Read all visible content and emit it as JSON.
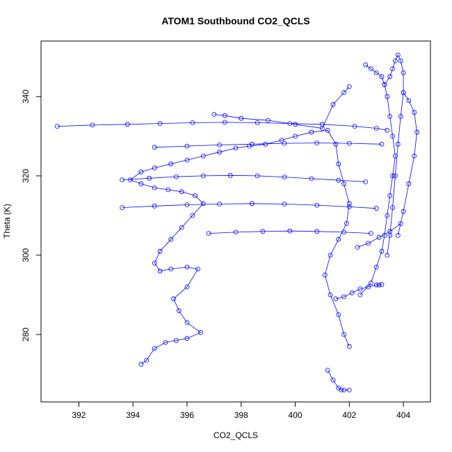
{
  "chart_data": {
    "type": "line",
    "title": "ATOM1 Southbound CO2_QCLS",
    "xlabel": "CO2_QCLS",
    "ylabel": "Theta (K)",
    "xlim": [
      390.6,
      405.0
    ],
    "ylim": [
      263.0,
      354.0
    ],
    "x_ticks": [
      392,
      394,
      396,
      398,
      400,
      402,
      404
    ],
    "y_ticks": [
      280,
      300,
      320,
      340
    ],
    "grid": false,
    "markers": "open-circle",
    "color": "#0000ff",
    "series": [
      {
        "x": [
          394.3,
          394.5,
          394.8,
          395.2,
          395.6,
          396.0,
          396.5,
          396.0,
          395.7,
          395.5,
          396.0,
          396.4,
          396.0,
          395.4,
          395.0,
          394.8,
          395.0,
          395.4,
          395.8,
          396.2,
          396.6,
          396.3,
          395.8,
          395.3,
          394.8,
          394.3,
          393.9,
          394.3,
          394.8,
          395.4,
          396.0,
          396.6,
          397.2,
          397.8,
          398.3,
          398.9,
          399.5,
          400.0,
          400.6,
          401.2,
          401.5,
          401.6,
          401.8,
          402.0,
          401.9,
          401.6,
          401.3,
          401.1,
          401.3,
          401.6,
          401.8,
          402.0
        ],
        "y": [
          272.5,
          273.5,
          276.5,
          278.0,
          278.5,
          279.0,
          280.5,
          283.0,
          286.0,
          289.0,
          292.0,
          296.5,
          297.0,
          296.5,
          296.0,
          298.0,
          301.0,
          304.0,
          307.0,
          310.0,
          313.0,
          315.0,
          316.0,
          316.5,
          317.0,
          318.0,
          319.0,
          321.0,
          322.0,
          323.0,
          324.0,
          325.0,
          326.0,
          327.0,
          327.5,
          328.0,
          329.0,
          330.0,
          331.0,
          331.5,
          328.0,
          323.0,
          318.0,
          313.0,
          308.0,
          304.0,
          300.0,
          295.0,
          290.0,
          285.0,
          280.0,
          277.0
        ]
      },
      {
        "x": [
          391.2,
          392.5,
          393.8,
          395.0,
          396.2,
          397.4,
          398.6,
          399.8,
          401.0,
          402.2,
          403.0,
          403.4
        ],
        "y": [
          332.5,
          332.8,
          333.0,
          333.2,
          333.4,
          333.5,
          333.4,
          333.2,
          333.0,
          332.5,
          332.0,
          331.5
        ]
      },
      {
        "x": [
          393.6,
          394.8,
          396.0,
          397.2,
          398.4,
          399.6,
          400.8,
          402.0,
          403.0
        ],
        "y": [
          312.0,
          312.4,
          312.7,
          312.9,
          313.0,
          312.9,
          312.6,
          312.2,
          311.8
        ]
      },
      {
        "x": [
          393.6,
          394.6,
          395.6,
          396.6,
          397.6,
          398.6,
          399.6,
          400.6,
          401.6,
          402.6
        ],
        "y": [
          319.0,
          319.4,
          319.8,
          320.0,
          320.1,
          320.0,
          319.7,
          319.3,
          318.9,
          318.5
        ]
      },
      {
        "x": [
          394.8,
          396.0,
          397.2,
          398.4,
          399.6,
          400.8,
          402.0,
          403.2
        ],
        "y": [
          327.2,
          327.5,
          327.8,
          328.0,
          328.2,
          328.3,
          328.2,
          328.0
        ]
      },
      {
        "x": [
          396.8,
          397.8,
          398.8,
          399.8,
          400.8,
          401.8,
          402.8
        ],
        "y": [
          305.5,
          305.8,
          306.0,
          306.1,
          306.0,
          305.8,
          305.5
        ]
      },
      {
        "x": [
          397.0,
          397.4,
          398.0,
          399.0,
          400.0,
          401.0,
          401.4,
          401.8,
          402.0
        ],
        "y": [
          335.5,
          335.2,
          334.5,
          334.0,
          333.0,
          332.0,
          338.0,
          341.0,
          342.5
        ]
      },
      {
        "x": [
          401.2,
          401.4,
          401.6,
          401.7,
          401.8,
          402.0
        ],
        "y": [
          271.0,
          268.5,
          266.5,
          266.0,
          266.0,
          266.0
        ]
      },
      {
        "x": [
          402.4,
          402.8,
          403.0,
          403.2,
          403.3,
          403.4,
          403.5,
          403.6,
          403.7,
          403.6,
          403.5,
          403.4,
          403.3,
          403.2,
          403.0,
          402.8,
          402.6
        ],
        "y": [
          290.0,
          293.0,
          297.0,
          301.0,
          305.0,
          310.0,
          315.0,
          320.0,
          325.0,
          330.0,
          335.0,
          340.0,
          343.0,
          345.0,
          346.0,
          347.0,
          348.0
        ]
      },
      {
        "x": [
          403.3,
          403.5,
          403.6,
          403.7,
          403.8,
          403.9,
          404.0,
          404.0,
          403.9,
          403.8,
          403.7,
          403.6,
          403.5,
          403.4
        ],
        "y": [
          343.0,
          345.0,
          347.0,
          349.0,
          350.5,
          349.0,
          346.0,
          341.0,
          335.0,
          328.0,
          320.0,
          312.0,
          305.0,
          300.0
        ]
      },
      {
        "x": [
          404.0,
          404.2,
          404.4,
          404.5,
          404.4,
          404.2,
          404.0,
          403.8
        ],
        "y": [
          341.0,
          339.0,
          336.0,
          331.0,
          325.0,
          318.0,
          311.0,
          305.0
        ]
      },
      {
        "x": [
          401.5,
          401.8,
          402.1,
          402.4,
          402.7,
          403.0,
          403.1,
          403.2
        ],
        "y": [
          289.0,
          289.5,
          290.5,
          291.5,
          292.0,
          292.5,
          292.5,
          292.6
        ]
      },
      {
        "x": [
          402.3,
          402.7,
          403.1,
          403.5,
          403.9
        ],
        "y": [
          302.0,
          303.0,
          304.5,
          306.0,
          308.0
        ]
      }
    ]
  }
}
